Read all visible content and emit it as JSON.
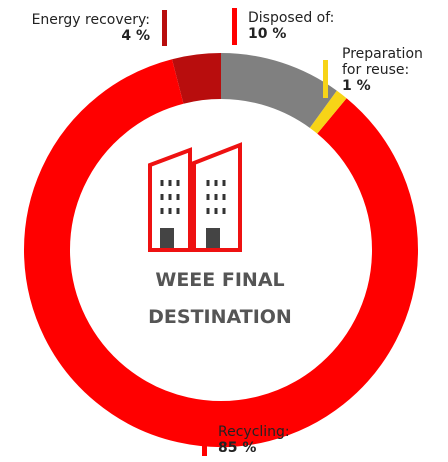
{
  "chart_data": {
    "type": "pie",
    "center_label": "WEEE FINAL DESTINATION",
    "categories": [
      "Disposed of:",
      "Preparation for reuse:",
      "Recycling:",
      "Energy recovery:"
    ],
    "values": [
      10,
      1,
      85,
      4
    ],
    "value_labels": [
      "10 %",
      "1 %",
      "85 %",
      "4 %"
    ],
    "colors": [
      "#808080",
      "#f7d417",
      "#ff0000",
      "#b80d0d"
    ]
  }
}
